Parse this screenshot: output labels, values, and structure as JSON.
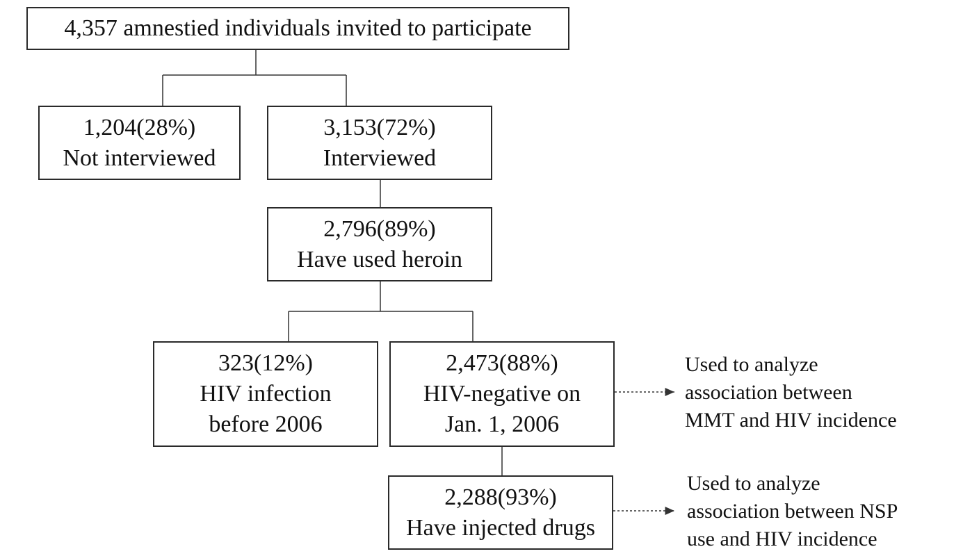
{
  "nodes": {
    "invited": {
      "lines": [
        "4,357 amnestied individuals invited to participate"
      ]
    },
    "not_interviewed": {
      "lines": [
        "1,204(28%)",
        "Not interviewed"
      ]
    },
    "interviewed": {
      "lines": [
        "3,153(72%)",
        "Interviewed"
      ]
    },
    "heroin": {
      "lines": [
        "2,796(89%)",
        "Have used heroin"
      ]
    },
    "hiv_infection": {
      "lines": [
        "323(12%)",
        "HIV infection",
        "before 2006"
      ]
    },
    "hiv_negative": {
      "lines": [
        "2,473(88%)",
        "HIV-negative on",
        "Jan. 1, 2006"
      ]
    },
    "injected": {
      "lines": [
        "2,288(93%)",
        "Have injected drugs"
      ]
    }
  },
  "notes": {
    "mmt": {
      "lines": [
        "Used to analyze",
        "association between",
        "MMT and HIV incidence"
      ]
    },
    "nsp": {
      "lines": [
        "Used to analyze",
        "association between NSP",
        "use and HIV incidence"
      ]
    }
  }
}
